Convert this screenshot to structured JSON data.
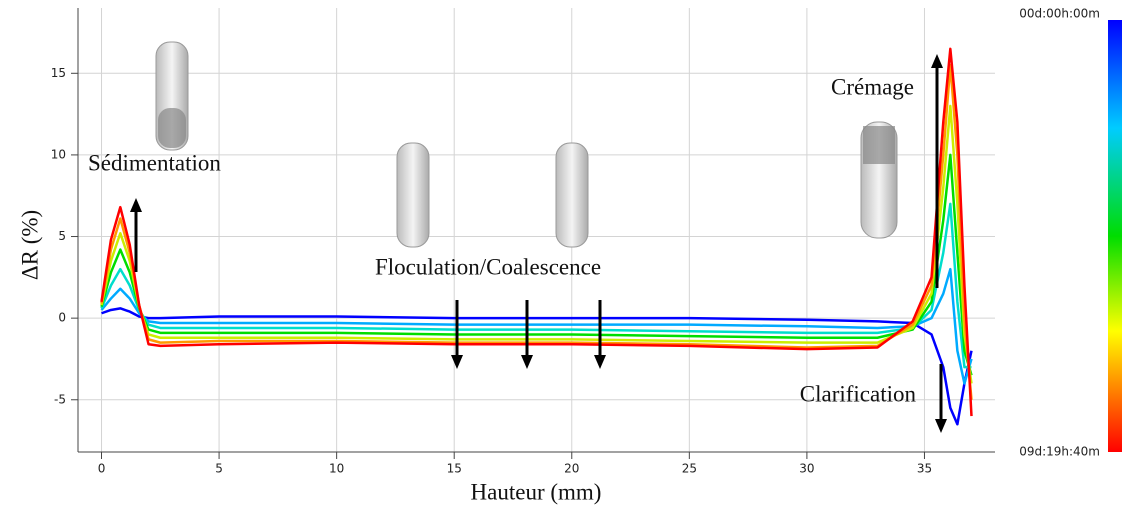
{
  "chart_data": {
    "type": "line",
    "xlabel": "Hauteur (mm)",
    "ylabel": "ΔR (%)",
    "xlim": [
      -1,
      38
    ],
    "ylim": [
      -8.2,
      19
    ],
    "xticks": [
      0,
      5,
      10,
      15,
      20,
      25,
      30,
      35
    ],
    "yticks": [
      -5,
      0,
      5,
      10,
      15
    ],
    "grid": true,
    "x": [
      0,
      0.4,
      0.8,
      1.2,
      1.6,
      2,
      2.5,
      5,
      10,
      15,
      20,
      25,
      30,
      33,
      34.5,
      35.3,
      35.8,
      36.1,
      36.4,
      36.7,
      37
    ],
    "series": [
      {
        "color": "#0000ff",
        "values": [
          0.3,
          0.5,
          0.6,
          0.4,
          0.1,
          0,
          0,
          0.1,
          0.1,
          0,
          0,
          0,
          -0.1,
          -0.2,
          -0.3,
          -1,
          -3,
          -5.5,
          -6.5,
          -4,
          -2
        ]
      },
      {
        "color": "#00aaff",
        "values": [
          0.5,
          1.2,
          1.8,
          1.2,
          0.3,
          -0.2,
          -0.3,
          -0.3,
          -0.3,
          -0.4,
          -0.4,
          -0.4,
          -0.5,
          -0.6,
          -0.5,
          0,
          1.5,
          3,
          -2,
          -4,
          -2.5
        ]
      },
      {
        "color": "#00ddcc",
        "values": [
          0.6,
          2,
          3,
          2,
          0.5,
          -0.4,
          -0.6,
          -0.6,
          -0.6,
          -0.7,
          -0.7,
          -0.8,
          -0.9,
          -0.9,
          -0.6,
          0.5,
          4,
          7,
          1,
          -3,
          -3
        ]
      },
      {
        "color": "#00dd00",
        "values": [
          0.7,
          2.8,
          4.2,
          2.8,
          0.6,
          -0.7,
          -0.9,
          -0.9,
          -0.9,
          -1,
          -1,
          -1.1,
          -1.2,
          -1.2,
          -0.7,
          1,
          6,
          10,
          4,
          -2,
          -3.5
        ]
      },
      {
        "color": "#ccee00",
        "values": [
          0.8,
          3.5,
          5.2,
          3.5,
          0.7,
          -1,
          -1.2,
          -1.2,
          -1.2,
          -1.3,
          -1.3,
          -1.4,
          -1.5,
          -1.5,
          -0.6,
          1.5,
          8,
          13,
          7,
          -1,
          -4
        ]
      },
      {
        "color": "#ff9900",
        "values": [
          0.9,
          4.2,
          6.1,
          4,
          0.8,
          -1.3,
          -1.5,
          -1.4,
          -1.4,
          -1.5,
          -1.5,
          -1.6,
          -1.8,
          -1.7,
          -0.4,
          2,
          10,
          15.5,
          10,
          0,
          -5
        ]
      },
      {
        "color": "#ff0000",
        "values": [
          1,
          4.8,
          6.8,
          4.5,
          0.8,
          -1.6,
          -1.7,
          -1.6,
          -1.5,
          -1.6,
          -1.6,
          -1.7,
          -1.9,
          -1.8,
          -0.2,
          2.5,
          12,
          16.5,
          12,
          2,
          -6
        ]
      }
    ],
    "annotations": [
      "Sédimentation",
      "Floculation/Coalescence",
      "Crémage",
      "Clarification"
    ],
    "colorbar": {
      "top_label": "00d:00h:00m",
      "bottom_label": "09d:19h:40m"
    }
  }
}
